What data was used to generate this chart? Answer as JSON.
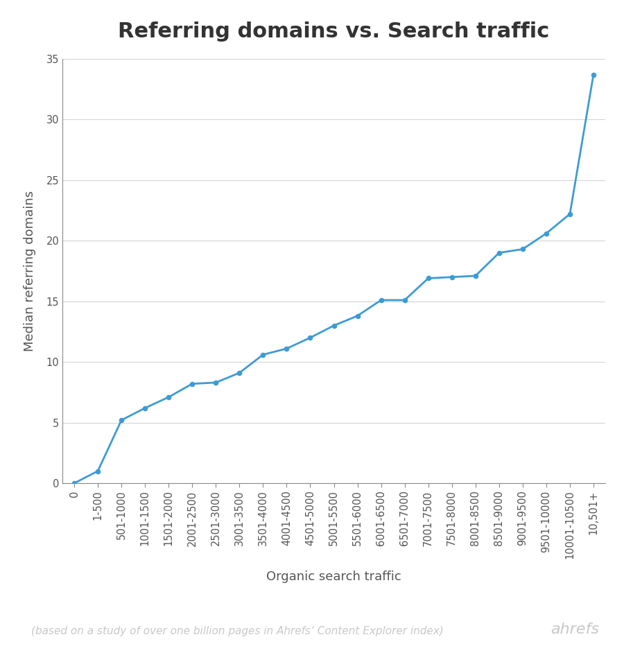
{
  "title": "Referring domains vs. Search traffic",
  "xlabel": "Organic search traffic",
  "ylabel": "Median referring domains",
  "footnote": "(based on a study of over one billion pages in Ahrefs’ Content Explorer index)",
  "brand": "ahrefs",
  "x_labels": [
    "0",
    "1-500",
    "501-1000",
    "1001-1500",
    "1501-2000",
    "2001-2500",
    "2501-3000",
    "3001-3500",
    "3501-4000",
    "4001-4500",
    "4501-5000",
    "5001-5500",
    "5501-6000",
    "6001-6500",
    "6501-7000",
    "7001-7500",
    "7501-8000",
    "8001-8500",
    "8501-9000",
    "9001-9500",
    "9501-10000",
    "10001-10500",
    "10,501+"
  ],
  "y_values": [
    0,
    1.0,
    5.2,
    6.2,
    7.1,
    8.2,
    8.3,
    9.1,
    10.6,
    11.1,
    12.0,
    13.0,
    13.8,
    15.1,
    15.1,
    16.9,
    17.0,
    17.1,
    19.0,
    19.3,
    20.6,
    22.2,
    33.7
  ],
  "line_color": "#3d9bd4",
  "marker_color": "#3d9bd4",
  "background_color": "#ffffff",
  "grid_color": "#d4d4d4",
  "spine_color": "#888888",
  "title_color": "#333333",
  "axis_label_color": "#555555",
  "tick_label_color": "#555555",
  "footnote_color": "#c8c8c8",
  "brand_color": "#c8c8c8",
  "ylim": [
    0,
    35
  ],
  "yticks": [
    0,
    5,
    10,
    15,
    20,
    25,
    30,
    35
  ],
  "title_fontsize": 22,
  "axis_label_fontsize": 13,
  "tick_fontsize": 10.5,
  "footnote_fontsize": 11,
  "brand_fontsize": 16
}
